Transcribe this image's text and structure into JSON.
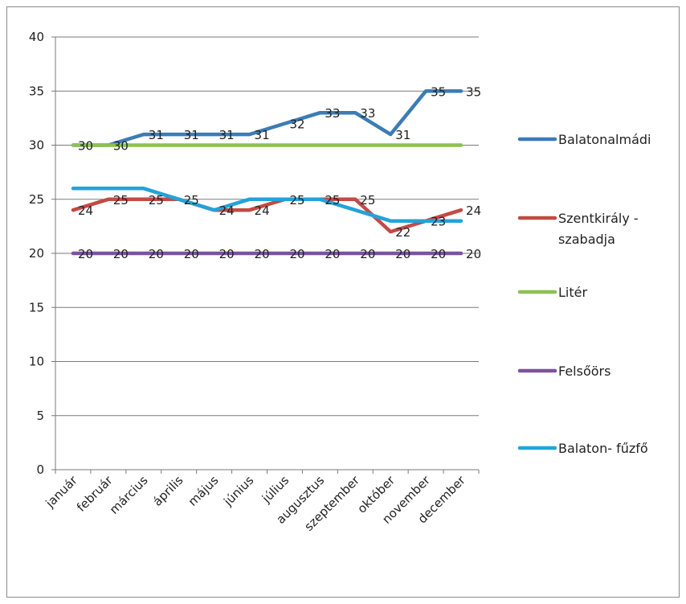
{
  "chart_data": {
    "type": "line",
    "categories": [
      "január",
      "február",
      "március",
      "április",
      "május",
      "június",
      "július",
      "augusztus",
      "szeptember",
      "október",
      "november",
      "december"
    ],
    "ylim": [
      0,
      40
    ],
    "yticks": [
      0,
      5,
      10,
      15,
      20,
      25,
      30,
      35,
      40
    ],
    "grid": true,
    "legend_position": "right",
    "series": [
      {
        "name": "Balatonalmádi",
        "color": "#3b7cb5",
        "values": [
          30,
          30,
          31,
          31,
          31,
          31,
          32,
          33,
          33,
          31,
          35,
          35
        ],
        "labels": true
      },
      {
        "name": "Szentkirály - szabadja",
        "name_lines": [
          "Szentkirály -",
          "szabadja"
        ],
        "color": "#c44a45",
        "values": [
          24,
          25,
          25,
          25,
          24,
          24,
          25,
          25,
          25,
          22,
          23,
          24
        ],
        "labels": true
      },
      {
        "name": "Litér",
        "color": "#8dc152",
        "values": [
          30,
          30,
          30,
          30,
          30,
          30,
          30,
          30,
          30,
          30,
          30,
          30
        ],
        "labels": false
      },
      {
        "name": "Felsőörs",
        "color": "#7b52a0",
        "values": [
          20,
          20,
          20,
          20,
          20,
          20,
          20,
          20,
          20,
          20,
          20,
          20
        ],
        "labels": true
      },
      {
        "name": "Balaton- fűzfő",
        "color": "#23a3d8",
        "values": [
          26,
          26,
          26,
          25,
          24,
          25,
          25,
          25,
          24,
          23,
          23,
          23
        ],
        "labels": false
      }
    ]
  }
}
